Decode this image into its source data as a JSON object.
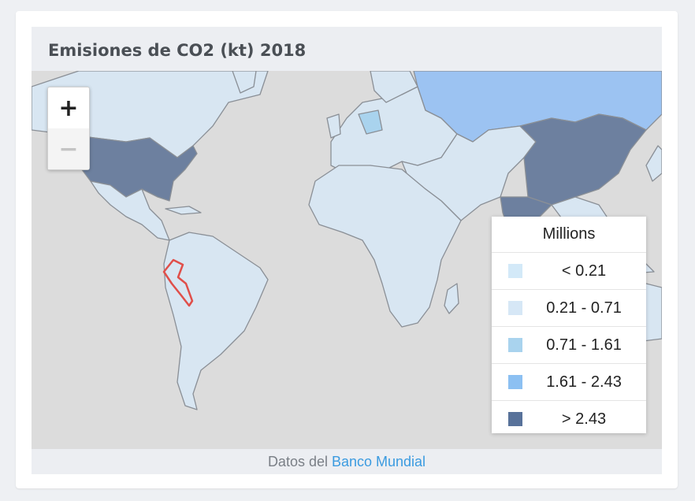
{
  "title": "Emisiones de CO2 (kt) 2018",
  "zoom": {
    "in_label": "+",
    "out_label": "−"
  },
  "legend": {
    "title": "Millions",
    "items": [
      {
        "label": "< 0.21",
        "color": "#d3e9f8"
      },
      {
        "label": "0.21 - 0.71",
        "color": "#d6e7f6"
      },
      {
        "label": "0.71 - 1.61",
        "color": "#a9d3ee"
      },
      {
        "label": "1.61 - 2.43",
        "color": "#8cc0f2"
      },
      {
        "label": "> 2.43",
        "color": "#58729a"
      }
    ]
  },
  "map_colors": {
    "ocean": "#dcdcdc",
    "low": "#d8e6f2",
    "mid": "#a9d3ee",
    "high": "#9cc3f2",
    "top": "#6d809f",
    "border": "#8a8f96",
    "highlight": "#e04f4a"
  },
  "credit": {
    "prefix": "Datos del",
    "link": "Banco Mundial"
  }
}
